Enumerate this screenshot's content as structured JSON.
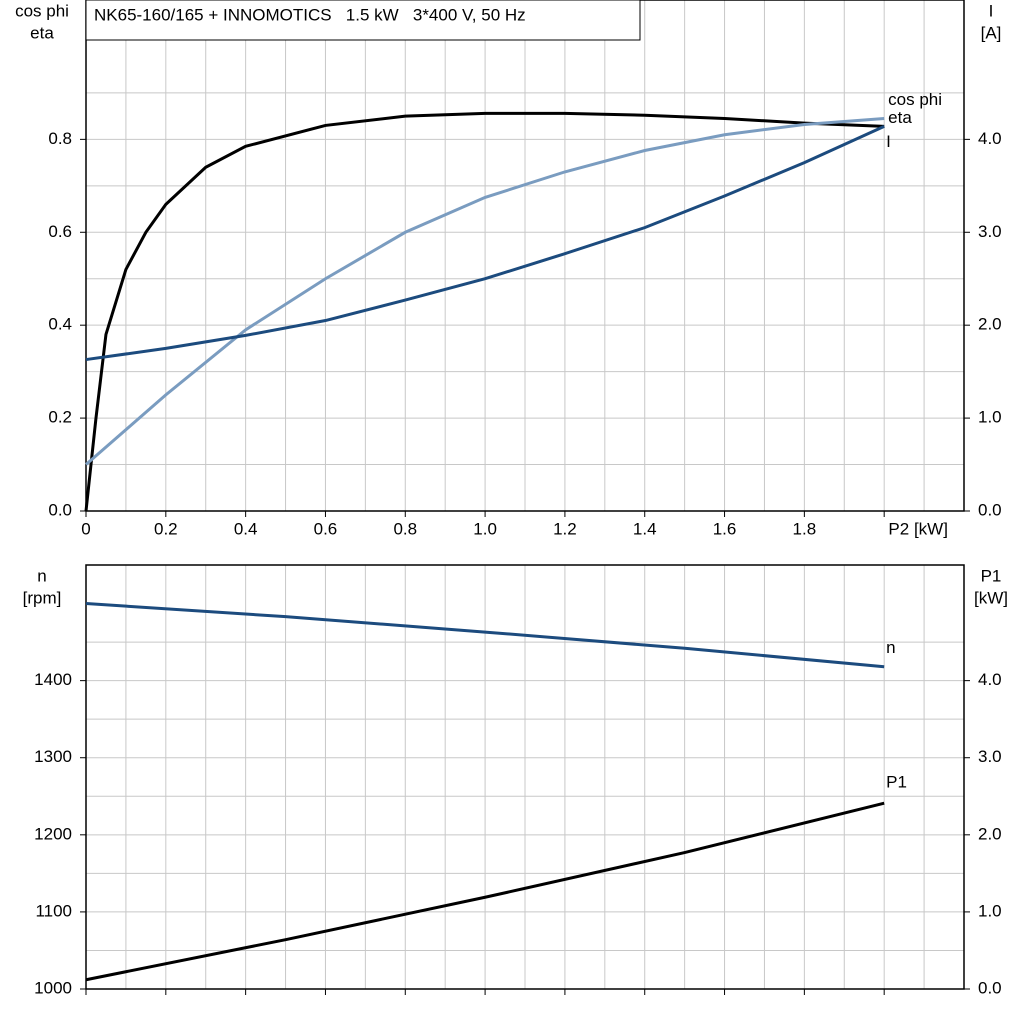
{
  "chart_data": [
    {
      "type": "line",
      "title": "NK65-160/165 + INNOMOTICS   1.5 kW   3*400 V, 50 Hz",
      "y_label": [
        "cos phi",
        "eta"
      ],
      "y2_label": [
        "I",
        "[A]"
      ],
      "xlim": [
        0,
        2.2
      ],
      "xticks": [
        0,
        0.2,
        0.4,
        0.6,
        0.8,
        {
          "value": 1.0,
          "label": "1.0"
        },
        1.2,
        1.4,
        1.6,
        1.8,
        {
          "value": 2.0,
          "label": "P2 [kW]"
        }
      ],
      "ylim": [
        0,
        1.1
      ],
      "yticks": [
        {
          "value": 0,
          "label": "0.0"
        },
        0.2,
        0.4,
        0.6,
        0.8
      ],
      "y2lim": [
        0,
        5.5
      ],
      "y2ticks": [
        {
          "value": 0,
          "label": "0.0"
        },
        {
          "value": 1,
          "label": "1.0"
        },
        {
          "value": 2,
          "label": "2.0"
        },
        {
          "value": 3,
          "label": "3.0"
        },
        {
          "value": 4,
          "label": "4.0"
        }
      ],
      "grid": true,
      "series": [
        {
          "name": "eta",
          "color": "#000000",
          "x": [
            0,
            0.025,
            0.05,
            0.1,
            0.15,
            0.2,
            0.3,
            0.4,
            0.6,
            0.8,
            1.0,
            1.2,
            1.4,
            1.6,
            1.8,
            2.0
          ],
          "values": [
            0,
            0.2,
            0.38,
            0.52,
            0.6,
            0.66,
            0.74,
            0.785,
            0.83,
            0.85,
            0.856,
            0.856,
            0.852,
            0.845,
            0.835,
            0.828
          ]
        },
        {
          "name": "cos phi",
          "color": "#7a9cc0",
          "x": [
            0,
            0.2,
            0.4,
            0.6,
            0.8,
            1.0,
            1.2,
            1.4,
            1.6,
            1.8,
            2.0
          ],
          "values": [
            0.1,
            0.25,
            0.39,
            0.5,
            0.6,
            0.675,
            0.73,
            0.776,
            0.81,
            0.832,
            0.845
          ]
        },
        {
          "name": "I",
          "color": "#1c4b7e",
          "axis": "y2",
          "x": [
            0,
            0.2,
            0.4,
            0.6,
            0.8,
            1.0,
            1.2,
            1.4,
            1.6,
            1.8,
            2.0
          ],
          "values": [
            1.63,
            1.75,
            1.89,
            2.05,
            2.27,
            2.5,
            2.77,
            3.05,
            3.39,
            3.75,
            4.14
          ]
        }
      ]
    },
    {
      "type": "line",
      "y_label": [
        "n",
        "[rpm]"
      ],
      "y2_label": [
        "P1",
        "[kW]"
      ],
      "xlim": [
        0,
        2.2
      ],
      "xticks": [
        0,
        0.2,
        0.4,
        0.6,
        0.8,
        1.0,
        1.2,
        1.4,
        1.6,
        1.8,
        2.0
      ],
      "ylim": [
        1000,
        1550
      ],
      "yticks": [
        1000,
        1100,
        1200,
        1300,
        1400
      ],
      "y2lim": [
        0,
        5.5
      ],
      "y2ticks": [
        {
          "value": 0,
          "label": "0.0"
        },
        {
          "value": 1,
          "label": "1.0"
        },
        {
          "value": 2,
          "label": "2.0"
        },
        {
          "value": 3,
          "label": "3.0"
        },
        {
          "value": 4,
          "label": "4.0"
        }
      ],
      "grid": true,
      "series": [
        {
          "name": "n",
          "color": "#1c4b7e",
          "x": [
            0,
            0.5,
            1.0,
            1.5,
            2.0
          ],
          "values": [
            1500,
            1483,
            1463,
            1442,
            1418
          ]
        },
        {
          "name": "P1",
          "color": "#000000",
          "axis": "y2",
          "x": [
            0,
            0.5,
            1.0,
            1.5,
            2.0
          ],
          "values": [
            0.12,
            0.64,
            1.19,
            1.77,
            2.41
          ]
        }
      ]
    }
  ]
}
